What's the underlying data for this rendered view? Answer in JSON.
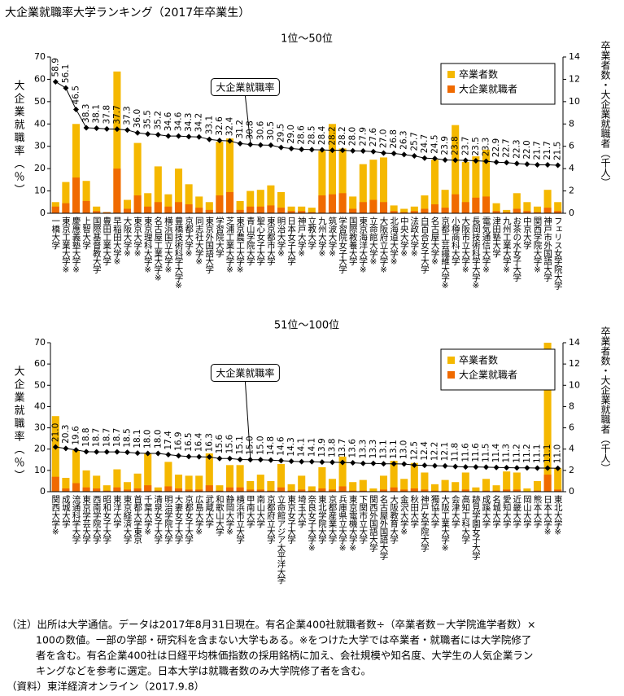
{
  "title": "大企業就職率大学ランキング（2017年卒業生）",
  "notes": [
    "（注）出所は大学通信。データは2017年8月31日現在。有名企業400社就職者数÷（卒業者数－大学院進学者数）×",
    "100の数値。一部の学部・研究科を含まない大学もある。※をつけた大学では卒業者・就職者には大学院修了",
    "者を含む。有名企業400社は日経平均株価指数の採用銘柄に加え、会社規模や知名度、大学生の人気企業ラン",
    "キングなどを参考に選定。日本大学は就職者数のみ大学院修了者を含む。"
  ],
  "source": "（資料）東洋経済オンライン（2017.9.8）",
  "chart_data": [
    {
      "type": "bar",
      "title": "1位～50位",
      "ylabel": "大企業就職率（％）",
      "y2label": "卒業者数・大企業就職者（千人）",
      "legend": "upper right",
      "ylim": [
        0,
        70
      ],
      "yticks": [
        0,
        10,
        20,
        30,
        40,
        50,
        60,
        70
      ],
      "y2lim": [
        0,
        14
      ],
      "y2ticks": [
        0,
        2,
        4,
        6,
        8,
        10,
        12,
        14
      ],
      "categories": [
        "一橋大学",
        "東京工業大学※",
        "慶應義塾大学※",
        "上智大学",
        "国際基督教大学",
        "豊田工業大学",
        "早稲田大学※",
        "大阪大学※",
        "東京大学※",
        "東京理科大学※",
        "名古屋工業大学※",
        "横浜国立大学※",
        "豊橋技術科学大学※",
        "京都大学※",
        "同志社大学※",
        "東京外国語大学",
        "学習院大学",
        "芝浦工業大学※",
        "東京農工大学※",
        "青山学院大学",
        "聖心女子大学",
        "東京都市大学",
        "明治大学※",
        "日本女子大学",
        "神戸大学※",
        "立教大学",
        "九州大学※",
        "筑波大学※",
        "学習院女子大学",
        "国際教養大学",
        "東京海洋大学※",
        "立命館大学※",
        "大阪府立大学※",
        "北海道大学※",
        "中央大学※",
        "法政大学※",
        "白百合女子大学",
        "名古屋大学※",
        "京都工芸繊維大学※",
        "小樽商科大学",
        "大阪市立大学※",
        "長岡技術科学大学※",
        "電気通信大学※",
        "津田塾大学",
        "九州工業大学※",
        "お茶の水女子大学",
        "中京大学",
        "関西学院大学※",
        "神戸市外国語大学",
        "フェリス女学院大学"
      ],
      "series": [
        {
          "name": "卒業者数",
          "color": "#f5b800",
          "axis": "y2",
          "values": [
            1.0,
            2.8,
            8.0,
            2.9,
            0.6,
            0.1,
            12.7,
            1.2,
            6.3,
            1.8,
            4.2,
            1.7,
            4.0,
            2.6,
            1.5,
            1.0,
            6.4,
            6.7,
            1.1,
            2.0,
            2.1,
            2.5,
            1.9,
            0.6,
            0.6,
            0.5,
            5.6,
            8.0,
            5.8,
            1.5,
            4.4,
            4.8,
            5.0,
            0.7,
            0.4,
            0.6,
            1.6,
            4.8,
            2.1,
            7.9,
            4.6,
            5.1,
            5.7,
            0.9,
            0.3,
            1.8,
            1.0,
            0.6,
            2.1,
            1.0
          ]
        },
        {
          "name": "大企業就職者",
          "color": "#f06a00",
          "axis": "y2",
          "values": [
            0.6,
            0.9,
            3.2,
            1.1,
            0.2,
            0.1,
            4.0,
            0.4,
            1.6,
            0.6,
            1.0,
            0.6,
            1.0,
            0.8,
            0.5,
            0.3,
            1.6,
            1.9,
            0.3,
            0.6,
            0.6,
            0.7,
            0.5,
            0.2,
            0.2,
            0.1,
            1.6,
            1.7,
            1.8,
            0.4,
            1.0,
            1.2,
            1.0,
            0.2,
            0.1,
            0.2,
            0.4,
            0.8,
            0.5,
            1.7,
            1.0,
            1.4,
            1.5,
            0.2,
            0.1,
            0.4,
            0.2,
            0.1,
            0.5,
            0.2
          ]
        },
        {
          "name": "大企業就職率",
          "type": "line",
          "color": "#000000",
          "axis": "y",
          "values": [
            58.9,
            56.1,
            46.5,
            38.3,
            38.1,
            37.8,
            37.7,
            37.3,
            36.0,
            35.5,
            35.2,
            34.6,
            34.6,
            34.3,
            34.2,
            33.1,
            32.6,
            32.4,
            31.2,
            30.8,
            30.6,
            30.5,
            29.5,
            29.0,
            28.6,
            28.5,
            28.4,
            28.2,
            28.2,
            28.0,
            27.9,
            27.6,
            27.0,
            26.8,
            26.3,
            25.7,
            24.7,
            24.5,
            23.9,
            23.8,
            23.7,
            23.5,
            23.3,
            22.9,
            22.7,
            22.3,
            22.0,
            21.7,
            21.7,
            21.5
          ],
          "value_labels": [
            "58.9",
            "56.1",
            "46.5",
            "38.3",
            "38.1",
            "37.8",
            "37.7",
            "37.3",
            "36.0",
            "35.5",
            "35.2",
            "34.6",
            "34.6",
            "34.3",
            "34.2",
            "33.1",
            "32.6",
            "32.4",
            "31.2",
            "30.8",
            "30.6",
            "30.5",
            "29.5",
            "29.0",
            "28.6",
            "28.5",
            "28.4",
            "28.2",
            "28.2",
            "28.0",
            "27.9",
            "27.6",
            "27.0",
            "26.8",
            "26.3",
            "25.7",
            "24.7",
            "24.5",
            "23.9",
            "23.8",
            "23.7",
            "23.5",
            "23.3",
            "22.9",
            "22.7",
            "22.3",
            "22.0",
            "21.7",
            "21.7",
            "21.5"
          ]
        }
      ]
    },
    {
      "type": "bar",
      "title": "51位～100位",
      "ylabel": "大企業就職率（％）",
      "y2label": "卒業者数・大企業就職者（千人）",
      "legend": "upper right",
      "ylim": [
        0,
        70
      ],
      "yticks": [
        0,
        10,
        20,
        30,
        40,
        50,
        60,
        70
      ],
      "y2lim": [
        0,
        14
      ],
      "y2ticks": [
        0,
        2,
        4,
        6,
        8,
        10,
        12,
        14
      ],
      "categories": [
        "関西大学※",
        "成城大学",
        "流通科学大学",
        "東京学芸大学",
        "西南学院大学",
        "昭和女子大学",
        "東洋大学",
        "東京経済大学",
        "首都大学東京",
        "千葉大学※",
        "清泉女子大学",
        "明治学院大学",
        "大妻女子大学",
        "京都女子大学",
        "広島大学※",
        "武蔵大学",
        "和歌山大学",
        "静岡大学※",
        "横浜市立大学",
        "甲南大学",
        "南山大学",
        "京都府立大学",
        "立命館アジア太平洋大学",
        "東京女子大学",
        "埼玉大学",
        "奈良女子大学※",
        "東北学院大学",
        "京都産業大学",
        "兵庫県立大学※",
        "東京電機大学※",
        "下関市立大学",
        "関西外国語大学",
        "名古屋外国語大学",
        "大阪教育大学",
        "金沢大学※",
        "秋田大学",
        "神戸女学院大学",
        "獨協大学",
        "大阪工業大学※",
        "会津大学",
        "高知工科大学",
        "跡見学園女子大学",
        "成蹊大学",
        "名城大学",
        "愛知大学",
        "近畿大学",
        "岡山大学",
        "熊本大学",
        "日本大学※",
        "東北大学※"
      ],
      "series": [
        {
          "name": "卒業者数",
          "color": "#f5b800",
          "axis": "y2",
          "values": [
            7.1,
            1.3,
            3.9,
            2.0,
            1.5,
            0.6,
            2.1,
            0.9,
            1.7,
            3.6,
            0.4,
            2.8,
            1.6,
            1.5,
            1.5,
            3.6,
            0.6,
            2.5,
            2.5,
            1.0,
            1.6,
            1.0,
            2.6,
            0.7,
            1.5,
            0.5,
            2.3,
            1.2,
            3.3,
            0.9,
            1.1,
            0.3,
            1.5,
            2.9,
            1.2,
            2.7,
            1.8,
            0.7,
            1.1,
            0.9,
            1.8,
            0.4,
            1.2,
            0.6,
            1.9,
            1.8,
            0.3,
            1.0,
            14.0,
            2.2
          ]
        },
        {
          "name": "大企業就職者",
          "color": "#f06a00",
          "axis": "y2",
          "values": [
            1.4,
            0.3,
            0.8,
            0.4,
            0.3,
            0.1,
            0.4,
            0.2,
            0.3,
            0.6,
            0.1,
            0.5,
            0.3,
            0.2,
            0.2,
            0.6,
            0.1,
            0.4,
            0.4,
            0.2,
            0.2,
            0.1,
            0.4,
            0.1,
            0.2,
            0.1,
            0.3,
            0.2,
            0.5,
            0.1,
            0.1,
            0.04,
            0.2,
            0.4,
            0.2,
            0.3,
            0.2,
            0.1,
            0.1,
            0.1,
            0.2,
            0.05,
            0.1,
            0.1,
            0.2,
            0.2,
            0.03,
            0.1,
            1.6,
            0.2
          ]
        },
        {
          "name": "大企業就職率",
          "type": "line",
          "color": "#000000",
          "axis": "y",
          "values": [
            21.0,
            20.3,
            19.6,
            18.8,
            18.7,
            18.7,
            18.7,
            18.5,
            18.1,
            18.0,
            18.0,
            17.4,
            16.9,
            16.5,
            16.4,
            16.3,
            15.6,
            15.6,
            15.1,
            15.0,
            15.0,
            14.8,
            14.6,
            14.3,
            14.1,
            14.1,
            13.9,
            13.8,
            13.7,
            13.6,
            13.3,
            13.3,
            13.1,
            13.1,
            13.0,
            12.5,
            12.4,
            12.2,
            12.1,
            11.8,
            11.6,
            11.6,
            11.5,
            11.4,
            11.3,
            11.2,
            11.2,
            11.1,
            11.1,
            11.0
          ],
          "value_labels": [
            "21.0",
            "20.3",
            "19.6",
            "18.8",
            "18.7",
            "18.7",
            "18.7",
            "18.5",
            "18.1",
            "18.0",
            "18.0",
            "17.4",
            "16.9",
            "16.5",
            "16.4",
            "16.3",
            "15.6",
            "15.6",
            "15.1",
            "15.0",
            "15.0",
            "14.8",
            "14.6",
            "14.3",
            "14.1",
            "14.1",
            "13.9",
            "13.8",
            "13.7",
            "13.6",
            "13.3",
            "13.3",
            "13.1",
            "13.1",
            "13.0",
            "12.5",
            "12.4",
            "12.2",
            "12.1",
            "11.8",
            "11.6",
            "11.6",
            "11.5",
            "11.4",
            "11.3",
            "11.2",
            "11.2",
            "11.1",
            "11.1",
            "11.0"
          ]
        }
      ]
    }
  ]
}
